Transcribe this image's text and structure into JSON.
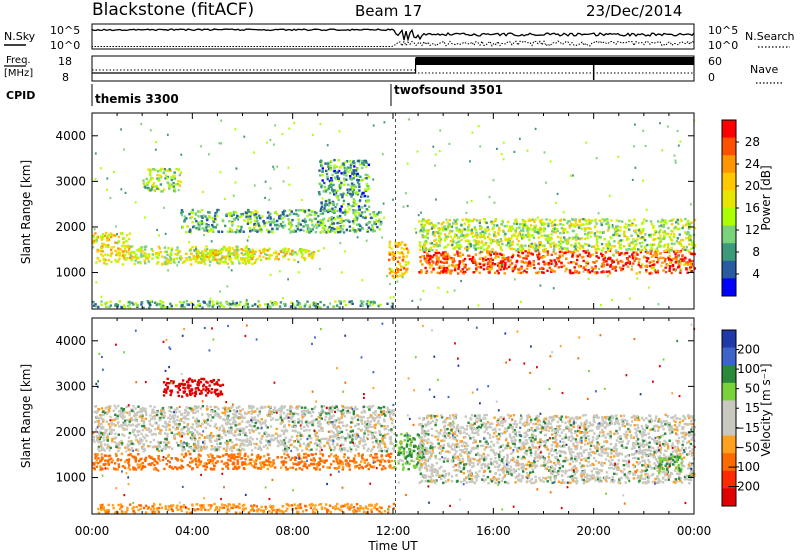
{
  "header": {
    "radar": "Blackstone (fitACF)",
    "beam": "Beam 17",
    "date": "23/Dec/2014"
  },
  "params": {
    "nsky_label": "N.Sky",
    "nsky_ticks": [
      "10^5",
      "10^0"
    ],
    "nsearch_label": "N.Search",
    "freq_label_1": "Freq.",
    "freq_label_2": "[MHz]",
    "freq_ticks": [
      "18",
      "8"
    ],
    "nave_label": "Nave",
    "nave_ticks": [
      "60",
      "0"
    ],
    "cpid_label": "CPID",
    "cpid_segments": [
      {
        "name": "themis 3300",
        "start_hour": 0
      },
      {
        "name": "twofsound 3501",
        "start_hour": 12.1
      }
    ]
  },
  "colorbars": {
    "power": {
      "label": "Power [dB]",
      "ticks": [
        "28",
        "24",
        "20",
        "16",
        "12",
        "8",
        "4"
      ],
      "colors": [
        "#ff0000",
        "#ff5000",
        "#ff9600",
        "#ffc800",
        "#e6e600",
        "#aaff00",
        "#7ad27a",
        "#3c9a7a",
        "#2a5aa0",
        "#0000ff"
      ]
    },
    "velocity": {
      "label": "Velocity [m s⁻¹]",
      "ticks": [
        "200",
        "100",
        "50",
        "15",
        "−15",
        "−50",
        "−100",
        "−200"
      ],
      "colors": [
        "#1f3aa8",
        "#3c64c8",
        "#2a8a3a",
        "#7ad23a",
        "#c8c8c0",
        "#c8c8c0",
        "#ffa020",
        "#ff6a00",
        "#ff2a00",
        "#e00000"
      ]
    }
  },
  "chart_data": [
    {
      "type": "heatmap",
      "name": "power",
      "ylabel": "Slant Range [km]",
      "xlabel": "Time UT",
      "xlim": [
        0,
        24
      ],
      "ylim": [
        200,
        4500
      ],
      "yticks": [
        "4000",
        "3000",
        "2000",
        "1000"
      ],
      "xticks": [
        "00:00",
        "04:00",
        "08:00",
        "12:00",
        "16:00",
        "20:00",
        "00:00"
      ],
      "colorbar": "Power [dB]",
      "bands": [
        {
          "t": [
            0,
            1.5
          ],
          "r": [
            1200,
            1900
          ],
          "level": 0.6
        },
        {
          "t": [
            1.5,
            6.5
          ],
          "r": [
            1200,
            1600
          ],
          "level": 0.5
        },
        {
          "t": [
            2.0,
            3.5
          ],
          "r": [
            2800,
            3300
          ],
          "level": 0.4
        },
        {
          "t": [
            3.5,
            11.5
          ],
          "r": [
            1900,
            2400
          ],
          "level": 0.3
        },
        {
          "t": [
            4.0,
            9.0
          ],
          "r": [
            1300,
            1550
          ],
          "level": 0.55
        },
        {
          "t": [
            9.0,
            11.0
          ],
          "r": [
            2400,
            3500
          ],
          "level": 0.25
        },
        {
          "t": [
            11.8,
            12.6
          ],
          "r": [
            900,
            1700
          ],
          "level": 0.7
        },
        {
          "t": [
            13.0,
            24.0
          ],
          "r": [
            1000,
            1500
          ],
          "level": 0.9
        },
        {
          "t": [
            13.0,
            24.0
          ],
          "r": [
            1500,
            2200
          ],
          "level": 0.45
        },
        {
          "t": [
            0,
            12.0
          ],
          "r": [
            250,
            400
          ],
          "level": 0.3
        }
      ]
    },
    {
      "type": "heatmap",
      "name": "velocity",
      "ylabel": "Slant Range [km]",
      "xlabel": "Time UT",
      "xlim": [
        0,
        24
      ],
      "ylim": [
        200,
        4500
      ],
      "yticks": [
        "4000",
        "3000",
        "2000",
        "1000"
      ],
      "xticks": [
        "00:00",
        "04:00",
        "08:00",
        "12:00",
        "16:00",
        "20:00",
        "00:00"
      ],
      "colorbar": "Velocity [m s⁻¹]",
      "bands": [
        {
          "t": [
            2.8,
            5.2
          ],
          "r": [
            2800,
            3200
          ],
          "value": -200
        },
        {
          "t": [
            0,
            12.0
          ],
          "r": [
            1200,
            1550
          ],
          "value": -60
        },
        {
          "t": [
            0,
            12.0
          ],
          "r": [
            1600,
            2600
          ],
          "value": 0
        },
        {
          "t": [
            12.0,
            13.2
          ],
          "r": [
            1200,
            2000
          ],
          "value": 30
        },
        {
          "t": [
            13.0,
            24.0
          ],
          "r": [
            900,
            1400
          ],
          "value": 0
        },
        {
          "t": [
            13.0,
            24.0
          ],
          "r": [
            1400,
            2400
          ],
          "value": 0
        },
        {
          "t": [
            22.5,
            23.5
          ],
          "r": [
            1100,
            1500
          ],
          "value": 30
        },
        {
          "t": [
            0,
            12.0
          ],
          "r": [
            250,
            450
          ],
          "value": -40
        }
      ]
    }
  ]
}
